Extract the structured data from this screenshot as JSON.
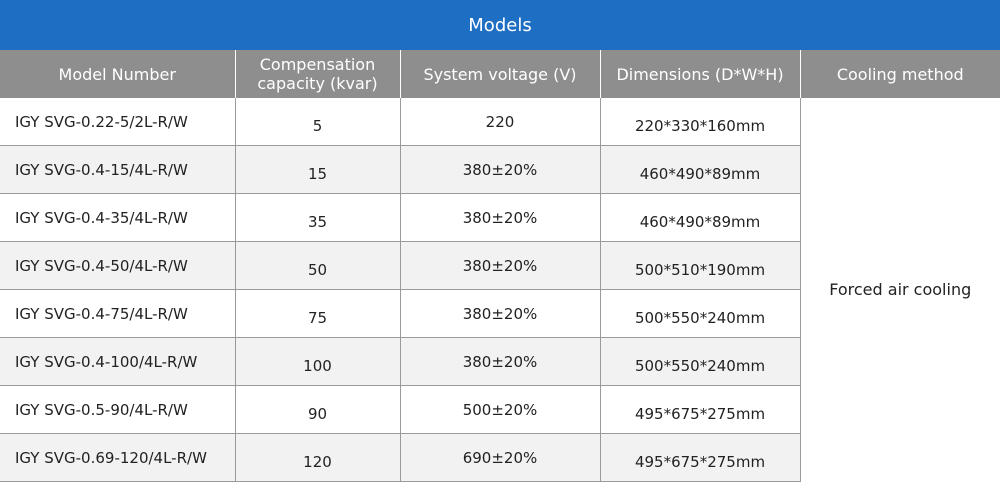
{
  "title": "Models",
  "headers": {
    "model_number": "Model Number",
    "capacity_line1": "Compensation",
    "capacity_line2": "capacity (kvar)",
    "voltage": "System voltage (V)",
    "dimensions": "Dimensions (D*W*H)",
    "cooling": "Cooling method"
  },
  "cooling_method": "Forced air cooling",
  "rows": [
    {
      "model": "IGY SVG-0.22-5/2L-R/W",
      "capacity": "5",
      "voltage": "220",
      "dimensions": "220*330*160mm"
    },
    {
      "model": "IGY SVG-0.4-15/4L-R/W",
      "capacity": "15",
      "voltage": "380±20%",
      "dimensions": "460*490*89mm"
    },
    {
      "model": "IGY SVG-0.4-35/4L-R/W",
      "capacity": "35",
      "voltage": "380±20%",
      "dimensions": "460*490*89mm"
    },
    {
      "model": "IGY SVG-0.4-50/4L-R/W",
      "capacity": "50",
      "voltage": "380±20%",
      "dimensions": "500*510*190mm"
    },
    {
      "model": "IGY SVG-0.4-75/4L-R/W",
      "capacity": "75",
      "voltage": "380±20%",
      "dimensions": "500*550*240mm"
    },
    {
      "model": "IGY SVG-0.4-100/4L-R/W",
      "capacity": "100",
      "voltage": "380±20%",
      "dimensions": "500*550*240mm"
    },
    {
      "model": "IGY SVG-0.5-90/4L-R/W",
      "capacity": "90",
      "voltage": "500±20%",
      "dimensions": "495*675*275mm"
    },
    {
      "model": "IGY SVG-0.69-120/4L-R/W",
      "capacity": "120",
      "voltage": "690±20%",
      "dimensions": "495*675*275mm"
    }
  ]
}
